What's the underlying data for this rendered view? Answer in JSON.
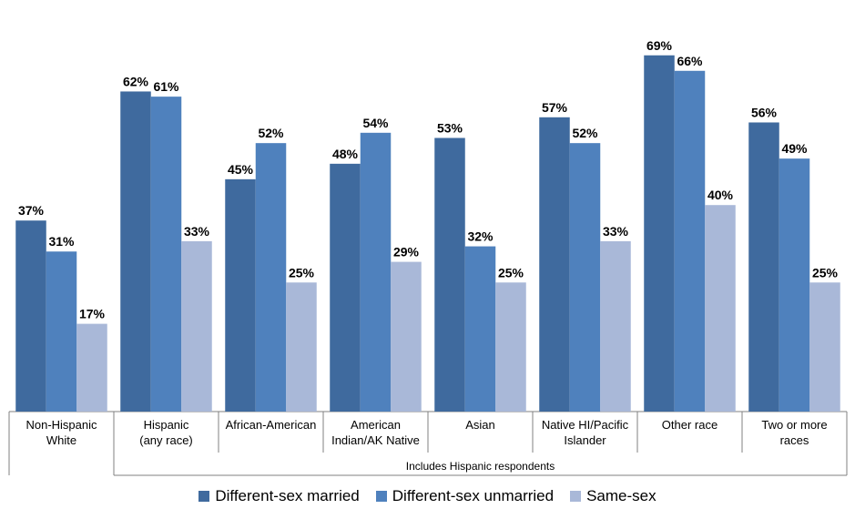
{
  "chart_data": {
    "type": "bar",
    "title": "",
    "xlabel": "",
    "ylabel": "",
    "ylim": [
      0,
      75
    ],
    "grid": false,
    "legend_position": "bottom",
    "categories": [
      [
        "Non-Hispanic",
        "White"
      ],
      [
        "Hispanic",
        "(any race)"
      ],
      [
        "African-American"
      ],
      [
        "American",
        "Indian/AK Native"
      ],
      [
        "Asian"
      ],
      [
        "Native HI/Pacific",
        "Islander"
      ],
      [
        "Other race"
      ],
      [
        "Two or more",
        "races"
      ]
    ],
    "group_annotation": "Includes Hispanic respondents",
    "series": [
      {
        "name": "Different-sex married",
        "color": "#3f6a9e",
        "values": [
          37,
          62,
          45,
          48,
          53,
          57,
          69,
          56
        ]
      },
      {
        "name": "Different-sex unmarried",
        "color": "#4f81bd",
        "values": [
          31,
          61,
          52,
          54,
          32,
          52,
          66,
          49
        ]
      },
      {
        "name": "Same-sex",
        "color": "#a9b8d8",
        "values": [
          17,
          33,
          25,
          29,
          25,
          33,
          40,
          25
        ]
      }
    ],
    "value_suffix": "%"
  }
}
